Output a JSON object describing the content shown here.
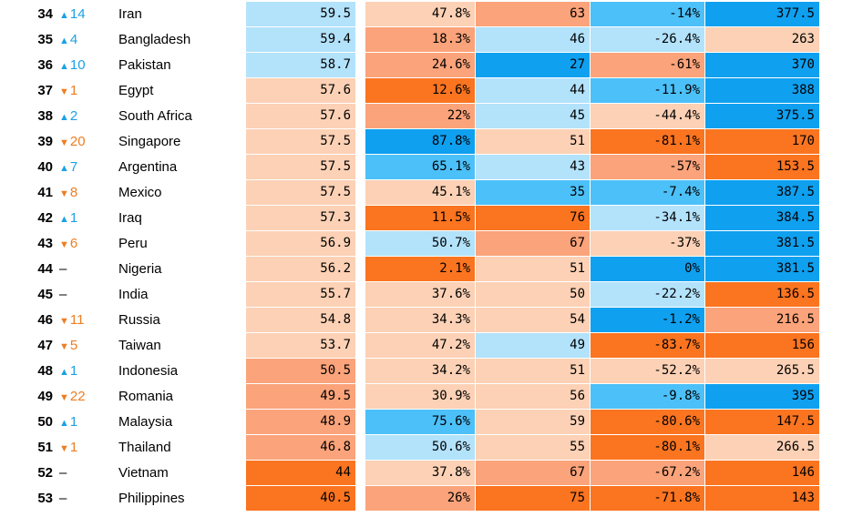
{
  "palette": {
    "blue_dark": "#0fa0f0",
    "blue_mid": "#4cc0f8",
    "blue_light": "#b3e2fb",
    "orange_light": "#fcd1b5",
    "orange_mid": "#fba37a",
    "orange_dark": "#fb7420",
    "trend_up": "#1aa1e6",
    "trend_down": "#ee7d22"
  },
  "rows": [
    {
      "rank": "34",
      "change": "14",
      "dir": "up",
      "country": "Iran",
      "cells": [
        {
          "v": "59.5",
          "c": "blue_light"
        },
        {
          "v": "47.8%",
          "c": "orange_light"
        },
        {
          "v": "63",
          "c": "orange_mid"
        },
        {
          "v": "-14%",
          "c": "blue_mid"
        },
        {
          "v": "377.5",
          "c": "blue_dark"
        }
      ]
    },
    {
      "rank": "35",
      "change": "4",
      "dir": "up",
      "country": "Bangladesh",
      "cells": [
        {
          "v": "59.4",
          "c": "blue_light"
        },
        {
          "v": "18.3%",
          "c": "orange_mid"
        },
        {
          "v": "46",
          "c": "blue_light"
        },
        {
          "v": "-26.4%",
          "c": "blue_light"
        },
        {
          "v": "263",
          "c": "orange_light"
        }
      ]
    },
    {
      "rank": "36",
      "change": "10",
      "dir": "up",
      "country": "Pakistan",
      "cells": [
        {
          "v": "58.7",
          "c": "blue_light"
        },
        {
          "v": "24.6%",
          "c": "orange_mid"
        },
        {
          "v": "27",
          "c": "blue_dark"
        },
        {
          "v": "-61%",
          "c": "orange_mid"
        },
        {
          "v": "370",
          "c": "blue_dark"
        }
      ]
    },
    {
      "rank": "37",
      "change": "1",
      "dir": "down",
      "country": "Egypt",
      "cells": [
        {
          "v": "57.6",
          "c": "orange_light"
        },
        {
          "v": "12.6%",
          "c": "orange_dark"
        },
        {
          "v": "44",
          "c": "blue_light"
        },
        {
          "v": "-11.9%",
          "c": "blue_mid"
        },
        {
          "v": "388",
          "c": "blue_dark"
        }
      ]
    },
    {
      "rank": "38",
      "change": "2",
      "dir": "up",
      "country": "South Africa",
      "cells": [
        {
          "v": "57.6",
          "c": "orange_light"
        },
        {
          "v": "22%",
          "c": "orange_mid"
        },
        {
          "v": "45",
          "c": "blue_light"
        },
        {
          "v": "-44.4%",
          "c": "orange_light"
        },
        {
          "v": "375.5",
          "c": "blue_dark"
        }
      ]
    },
    {
      "rank": "39",
      "change": "20",
      "dir": "down",
      "country": "Singapore",
      "cells": [
        {
          "v": "57.5",
          "c": "orange_light"
        },
        {
          "v": "87.8%",
          "c": "blue_dark"
        },
        {
          "v": "51",
          "c": "orange_light"
        },
        {
          "v": "-81.1%",
          "c": "orange_dark"
        },
        {
          "v": "170",
          "c": "orange_dark"
        }
      ]
    },
    {
      "rank": "40",
      "change": "7",
      "dir": "up",
      "country": "Argentina",
      "cells": [
        {
          "v": "57.5",
          "c": "orange_light"
        },
        {
          "v": "65.1%",
          "c": "blue_mid"
        },
        {
          "v": "43",
          "c": "blue_light"
        },
        {
          "v": "-57%",
          "c": "orange_mid"
        },
        {
          "v": "153.5",
          "c": "orange_dark"
        }
      ]
    },
    {
      "rank": "41",
      "change": "8",
      "dir": "down",
      "country": "Mexico",
      "cells": [
        {
          "v": "57.5",
          "c": "orange_light"
        },
        {
          "v": "45.1%",
          "c": "orange_light"
        },
        {
          "v": "35",
          "c": "blue_mid"
        },
        {
          "v": "-7.4%",
          "c": "blue_mid"
        },
        {
          "v": "387.5",
          "c": "blue_dark"
        }
      ]
    },
    {
      "rank": "42",
      "change": "1",
      "dir": "up",
      "country": "Iraq",
      "cells": [
        {
          "v": "57.3",
          "c": "orange_light"
        },
        {
          "v": "11.5%",
          "c": "orange_dark"
        },
        {
          "v": "76",
          "c": "orange_dark"
        },
        {
          "v": "-34.1%",
          "c": "blue_light"
        },
        {
          "v": "384.5",
          "c": "blue_dark"
        }
      ]
    },
    {
      "rank": "43",
      "change": "6",
      "dir": "down",
      "country": "Peru",
      "cells": [
        {
          "v": "56.9",
          "c": "orange_light"
        },
        {
          "v": "50.7%",
          "c": "blue_light"
        },
        {
          "v": "67",
          "c": "orange_mid"
        },
        {
          "v": "-37%",
          "c": "orange_light"
        },
        {
          "v": "381.5",
          "c": "blue_dark"
        }
      ]
    },
    {
      "rank": "44",
      "change": "",
      "dir": "none",
      "country": "Nigeria",
      "cells": [
        {
          "v": "56.2",
          "c": "orange_light"
        },
        {
          "v": "2.1%",
          "c": "orange_dark"
        },
        {
          "v": "51",
          "c": "orange_light"
        },
        {
          "v": "0%",
          "c": "blue_dark"
        },
        {
          "v": "381.5",
          "c": "blue_dark"
        }
      ]
    },
    {
      "rank": "45",
      "change": "",
      "dir": "none",
      "country": "India",
      "cells": [
        {
          "v": "55.7",
          "c": "orange_light"
        },
        {
          "v": "37.6%",
          "c": "orange_light"
        },
        {
          "v": "50",
          "c": "orange_light"
        },
        {
          "v": "-22.2%",
          "c": "blue_light"
        },
        {
          "v": "136.5",
          "c": "orange_dark"
        }
      ]
    },
    {
      "rank": "46",
      "change": "11",
      "dir": "down",
      "country": "Russia",
      "cells": [
        {
          "v": "54.8",
          "c": "orange_light"
        },
        {
          "v": "34.3%",
          "c": "orange_light"
        },
        {
          "v": "54",
          "c": "orange_light"
        },
        {
          "v": "-1.2%",
          "c": "blue_dark"
        },
        {
          "v": "216.5",
          "c": "orange_mid"
        }
      ]
    },
    {
      "rank": "47",
      "change": "5",
      "dir": "down",
      "country": "Taiwan",
      "cells": [
        {
          "v": "53.7",
          "c": "orange_light"
        },
        {
          "v": "47.2%",
          "c": "orange_light"
        },
        {
          "v": "49",
          "c": "blue_light"
        },
        {
          "v": "-83.7%",
          "c": "orange_dark"
        },
        {
          "v": "156",
          "c": "orange_dark"
        }
      ]
    },
    {
      "rank": "48",
      "change": "1",
      "dir": "up",
      "country": "Indonesia",
      "cells": [
        {
          "v": "50.5",
          "c": "orange_mid"
        },
        {
          "v": "34.2%",
          "c": "orange_light"
        },
        {
          "v": "51",
          "c": "orange_light"
        },
        {
          "v": "-52.2%",
          "c": "orange_light"
        },
        {
          "v": "265.5",
          "c": "orange_light"
        }
      ]
    },
    {
      "rank": "49",
      "change": "22",
      "dir": "down",
      "country": "Romania",
      "cells": [
        {
          "v": "49.5",
          "c": "orange_mid"
        },
        {
          "v": "30.9%",
          "c": "orange_light"
        },
        {
          "v": "56",
          "c": "orange_light"
        },
        {
          "v": "-9.8%",
          "c": "blue_mid"
        },
        {
          "v": "395",
          "c": "blue_dark"
        }
      ]
    },
    {
      "rank": "50",
      "change": "1",
      "dir": "up",
      "country": "Malaysia",
      "cells": [
        {
          "v": "48.9",
          "c": "orange_mid"
        },
        {
          "v": "75.6%",
          "c": "blue_mid"
        },
        {
          "v": "59",
          "c": "orange_light"
        },
        {
          "v": "-80.6%",
          "c": "orange_dark"
        },
        {
          "v": "147.5",
          "c": "orange_dark"
        }
      ]
    },
    {
      "rank": "51",
      "change": "1",
      "dir": "down",
      "country": "Thailand",
      "cells": [
        {
          "v": "46.8",
          "c": "orange_mid"
        },
        {
          "v": "50.6%",
          "c": "blue_light"
        },
        {
          "v": "55",
          "c": "orange_light"
        },
        {
          "v": "-80.1%",
          "c": "orange_dark"
        },
        {
          "v": "266.5",
          "c": "orange_light"
        }
      ]
    },
    {
      "rank": "52",
      "change": "",
      "dir": "none",
      "country": "Vietnam",
      "cells": [
        {
          "v": "44",
          "c": "orange_dark"
        },
        {
          "v": "37.8%",
          "c": "orange_light"
        },
        {
          "v": "67",
          "c": "orange_mid"
        },
        {
          "v": "-67.2%",
          "c": "orange_mid"
        },
        {
          "v": "146",
          "c": "orange_dark"
        }
      ]
    },
    {
      "rank": "53",
      "change": "",
      "dir": "none",
      "country": "Philippines",
      "cells": [
        {
          "v": "40.5",
          "c": "orange_dark"
        },
        {
          "v": "26%",
          "c": "orange_mid"
        },
        {
          "v": "75",
          "c": "orange_dark"
        },
        {
          "v": "-71.8%",
          "c": "orange_dark"
        },
        {
          "v": "143",
          "c": "orange_dark"
        }
      ]
    }
  ]
}
